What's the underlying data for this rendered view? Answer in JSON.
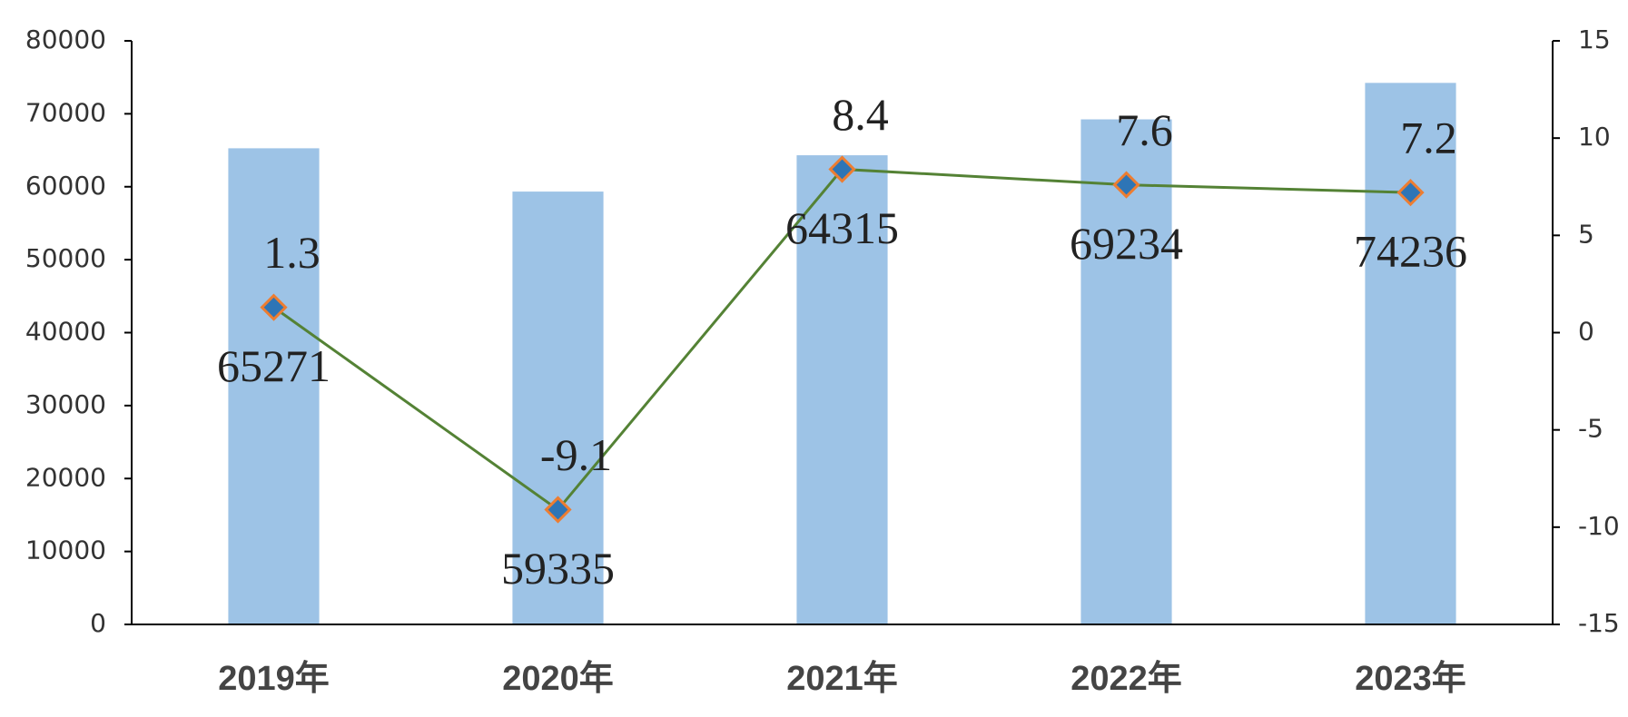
{
  "chart_data": {
    "type": "bar",
    "categories": [
      "2019年",
      "2020年",
      "2021年",
      "2022年",
      "2023年"
    ],
    "series": [
      {
        "type": "bar",
        "color": "#9dc3e6",
        "values": [
          65271,
          59335,
          64315,
          69234,
          74236
        ]
      },
      {
        "type": "line",
        "axis": "y2",
        "color": "#548235",
        "marker_fill": "#2e75b6",
        "marker_stroke": "#ed7d31",
        "values": [
          1.3,
          -9.1,
          8.4,
          7.6,
          7.2
        ]
      }
    ],
    "ylim": [
      0,
      80000
    ],
    "yticks": [
      0,
      10000,
      20000,
      30000,
      40000,
      50000,
      60000,
      70000,
      80000
    ],
    "y2lim": [
      -15,
      15
    ],
    "y2ticks": [
      -15,
      -10,
      -5,
      0,
      5,
      10,
      15
    ],
    "grid": false
  }
}
